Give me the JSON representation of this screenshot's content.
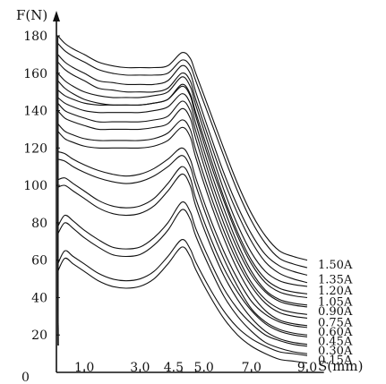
{
  "chart_data": {
    "type": "line",
    "title": "",
    "xlabel": "S(mm)",
    "ylabel": "F(N)",
    "origin_label": "0",
    "xlim": [
      0,
      9.6
    ],
    "ylim": [
      0,
      186
    ],
    "x_ticks": [
      {
        "x": 1.0,
        "label": "1.0"
      },
      {
        "x": 3.0,
        "label": "3.0"
      },
      {
        "x": 4.5,
        "label": "4.5"
      },
      {
        "x": 5.0,
        "label": "5.0"
      },
      {
        "x": 7.0,
        "label": "7.0"
      },
      {
        "x": 9.0,
        "label": "9.0"
      }
    ],
    "y_ticks": [
      {
        "y": 20,
        "label": "20"
      },
      {
        "y": 40,
        "label": "40"
      },
      {
        "y": 60,
        "label": "60"
      },
      {
        "y": 80,
        "label": "80"
      },
      {
        "y": 100,
        "label": "100"
      },
      {
        "y": 120,
        "label": "120"
      },
      {
        "y": 140,
        "label": "140"
      },
      {
        "y": 160,
        "label": "160"
      },
      {
        "y": 180,
        "label": "180"
      }
    ],
    "x": [
      0.05,
      0.3,
      0.6,
      1.0,
      1.5,
      2.0,
      2.5,
      3.0,
      3.5,
      4.0,
      4.5,
      4.8,
      5.0,
      5.5,
      6.0,
      6.5,
      7.0,
      7.5,
      8.0,
      8.5,
      9.0
    ],
    "series": [
      {
        "name": "1.50A",
        "values": [
          180,
          176,
          173,
          170,
          166,
          164,
          163,
          163,
          163,
          164,
          171,
          168,
          160,
          140,
          120,
          101,
          85,
          73,
          65,
          62,
          60
        ]
      },
      {
        "name": "1.35A",
        "values": [
          170,
          166,
          163,
          160,
          156,
          155,
          154,
          154,
          154,
          156,
          164,
          160,
          150,
          128,
          107,
          89,
          74,
          63,
          57,
          54,
          52
        ]
      },
      {
        "name": "1.20A",
        "values": [
          160,
          156,
          153,
          150,
          148,
          147,
          147,
          147,
          148,
          150,
          158,
          153,
          143,
          120,
          98,
          79,
          64,
          54,
          49,
          47,
          46
        ]
      },
      {
        "name": "1.05A",
        "values": [
          151,
          148,
          146,
          144,
          143,
          143,
          143,
          143,
          144,
          146,
          153,
          148,
          137,
          113,
          92,
          73,
          58,
          48,
          43,
          41,
          40
        ]
      },
      {
        "name": "0.90A",
        "values": [
          144,
          140,
          138,
          136,
          134,
          134,
          134,
          134,
          135,
          137,
          145,
          140,
          129,
          105,
          84,
          66,
          52,
          43,
          38,
          36,
          35
        ]
      },
      {
        "name": "0.75A",
        "values": [
          133,
          129,
          127,
          125,
          124,
          124,
          124,
          124,
          125,
          128,
          135,
          130,
          119,
          96,
          76,
          59,
          46,
          37,
          32,
          30,
          29
        ]
      },
      {
        "name": "0.60A",
        "values": [
          118,
          117,
          114,
          111,
          108,
          106,
          105,
          106,
          109,
          114,
          120,
          114,
          104,
          83,
          65,
          50,
          38,
          31,
          27,
          25,
          24
        ]
      },
      {
        "name": "0.45A",
        "values": [
          103,
          104,
          101,
          97,
          92,
          89,
          88,
          89,
          93,
          101,
          110,
          104,
          93,
          73,
          56,
          43,
          33,
          26,
          22,
          20,
          19
        ]
      },
      {
        "name": "0.30A",
        "values": [
          78,
          84,
          81,
          76,
          71,
          67,
          66,
          67,
          72,
          80,
          91,
          86,
          77,
          60,
          45,
          34,
          26,
          20,
          17,
          15,
          14
        ]
      },
      {
        "name": "0.15A",
        "values": [
          58,
          65,
          62,
          58,
          53,
          50,
          49,
          50,
          54,
          62,
          71,
          66,
          59,
          45,
          33,
          24,
          18,
          14,
          11,
          10,
          9
        ]
      }
    ],
    "series_lower_edge_offset": 4,
    "legend_placement": "right end of each curve",
    "grid": false,
    "colors": {
      "line": "#111111",
      "background": "#ffffff"
    }
  }
}
